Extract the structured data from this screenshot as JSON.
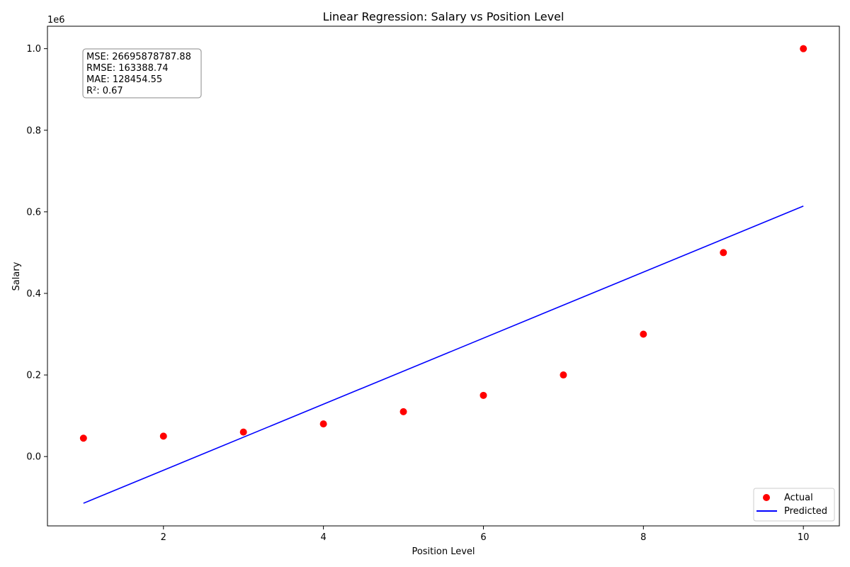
{
  "chart_data": {
    "type": "scatter",
    "title": "Linear Regression: Salary vs Position Level",
    "xlabel": "Position Level",
    "ylabel": "Salary",
    "y_scale_label": "1e6",
    "xlim": [
      0.55,
      10.45
    ],
    "ylim": [
      -0.17,
      1.055
    ],
    "x_ticks": [
      2,
      4,
      6,
      8,
      10
    ],
    "x_tick_labels": [
      "2",
      "4",
      "6",
      "8",
      "10"
    ],
    "y_ticks": [
      0.0,
      0.2,
      0.4,
      0.6,
      0.8,
      1.0
    ],
    "y_tick_labels": [
      "0.0",
      "0.2",
      "0.4",
      "0.6",
      "0.8",
      "1.0"
    ],
    "grid": false,
    "legend_position": "bottom-right",
    "series": [
      {
        "name": "Actual",
        "kind": "scatter",
        "color": "#ff0000",
        "x": [
          1,
          2,
          3,
          4,
          5,
          6,
          7,
          8,
          9,
          10
        ],
        "y": [
          0.045,
          0.05,
          0.06,
          0.08,
          0.11,
          0.15,
          0.2,
          0.3,
          0.5,
          1.0
        ]
      },
      {
        "name": "Predicted",
        "kind": "line",
        "color": "#0000ff",
        "x": [
          1,
          10
        ],
        "y": [
          -0.1145,
          0.6141
        ]
      }
    ],
    "annotations": [
      "MSE: 26695878787.88",
      "RMSE: 163388.74",
      "MAE: 128454.55",
      "R²: 0.67"
    ]
  }
}
